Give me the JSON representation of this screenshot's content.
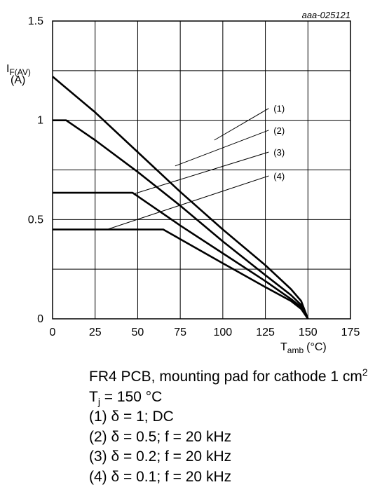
{
  "chart_data": {
    "type": "line",
    "figure_id": "aaa-025121",
    "ylabel_main": "I",
    "ylabel_sub": "F(AV)",
    "ylabel_unit": "(A)",
    "xlabel_main": "T",
    "xlabel_sub": "amb",
    "xlabel_unit": "(°C)",
    "xlim": [
      0,
      175
    ],
    "ylim": [
      0,
      1.5
    ],
    "x_ticks": [
      {
        "value": 0,
        "label": "0"
      },
      {
        "value": 25,
        "label": "25"
      },
      {
        "value": 50,
        "label": "50"
      },
      {
        "value": 75,
        "label": "75"
      },
      {
        "value": 100,
        "label": "100"
      },
      {
        "value": 125,
        "label": "125"
      },
      {
        "value": 150,
        "label": "150"
      },
      {
        "value": 175,
        "label": "175"
      }
    ],
    "y_ticks": [
      {
        "value": 0,
        "label": "0"
      },
      {
        "value": 0.5,
        "label": "0.5"
      },
      {
        "value": 1,
        "label": "1"
      },
      {
        "value": 1.5,
        "label": "1.5"
      }
    ],
    "grid_x": [
      25,
      50,
      75,
      100,
      125,
      150
    ],
    "grid_y": [
      0.25,
      0.5,
      0.75,
      1.0,
      1.25
    ],
    "series": [
      {
        "name": "(1)",
        "points": [
          [
            0,
            1.22
          ],
          [
            25,
            1.04
          ],
          [
            50,
            0.84
          ],
          [
            75,
            0.64
          ],
          [
            100,
            0.45
          ],
          [
            125,
            0.27
          ],
          [
            140,
            0.15
          ],
          [
            146,
            0.09
          ],
          [
            150,
            0.0
          ]
        ]
      },
      {
        "name": "(2)",
        "points": [
          [
            0,
            1.0
          ],
          [
            8,
            1.0
          ],
          [
            25,
            0.9
          ],
          [
            50,
            0.74
          ],
          [
            75,
            0.57
          ],
          [
            100,
            0.39
          ],
          [
            125,
            0.22
          ],
          [
            140,
            0.12
          ],
          [
            146,
            0.07
          ],
          [
            150,
            0.0
          ]
        ]
      },
      {
        "name": "(3)",
        "points": [
          [
            0,
            0.635
          ],
          [
            47,
            0.635
          ],
          [
            75,
            0.47
          ],
          [
            100,
            0.33
          ],
          [
            125,
            0.19
          ],
          [
            140,
            0.1
          ],
          [
            146,
            0.06
          ],
          [
            150,
            0.0
          ]
        ]
      },
      {
        "name": "(4)",
        "points": [
          [
            0,
            0.45
          ],
          [
            65,
            0.45
          ],
          [
            100,
            0.28
          ],
          [
            125,
            0.16
          ],
          [
            140,
            0.09
          ],
          [
            146,
            0.05
          ],
          [
            150,
            0.0
          ]
        ]
      }
    ],
    "callouts": [
      {
        "label": "(1)",
        "from": [
          95,
          0.9
        ],
        "to": [
          127,
          1.06
        ],
        "label_at": [
          129,
          1.06
        ]
      },
      {
        "label": "(2)",
        "from": [
          72,
          0.77
        ],
        "to": [
          127,
          0.95
        ],
        "label_at": [
          129,
          0.95
        ]
      },
      {
        "label": "(3)",
        "from": [
          48,
          0.63
        ],
        "to": [
          127,
          0.84
        ],
        "label_at": [
          129,
          0.84
        ]
      },
      {
        "label": "(4)",
        "from": [
          32,
          0.45
        ],
        "to": [
          127,
          0.72
        ],
        "label_at": [
          129,
          0.72
        ]
      }
    ]
  },
  "caption": {
    "line1_text": "FR4 PCB, mounting pad for cathode 1 cm",
    "line1_sup": "2",
    "line2_main": "T",
    "line2_sub": "j",
    "line2_rest": " = 150 °C",
    "line3": "(1) δ = 1; DC",
    "line4": "(2) δ = 0.5; f = 20 kHz",
    "line5": "(3) δ = 0.2; f = 20 kHz",
    "line6": "(4) δ = 0.1; f = 20 kHz"
  }
}
